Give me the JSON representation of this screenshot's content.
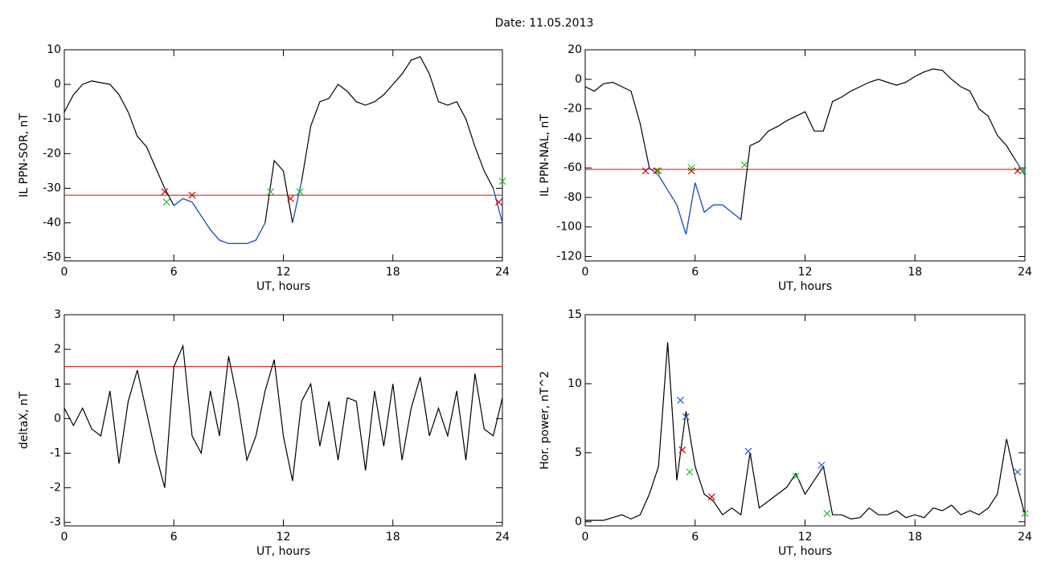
{
  "title": "Date:  11.05.2013",
  "chart_data": [
    {
      "type": "line",
      "ylabel": "IL PPN-SOR, nT",
      "xlabel": "UT, hours",
      "xlim": [
        0,
        24
      ],
      "xticks": [
        0,
        6,
        12,
        18,
        24
      ],
      "ylim": [
        -51,
        10
      ],
      "yticks": [
        -50,
        -40,
        -30,
        -20,
        -10,
        0,
        10
      ],
      "x": [
        0,
        0.5,
        1,
        1.5,
        2,
        2.5,
        3,
        3.5,
        4,
        4.5,
        5,
        5.5,
        6,
        6.5,
        7,
        7.5,
        8,
        8.5,
        9,
        9.5,
        10,
        10.5,
        11,
        11.5,
        12,
        12.5,
        13,
        13.5,
        14,
        14.5,
        15,
        15.5,
        16,
        16.5,
        17,
        17.5,
        18,
        18.5,
        19,
        19.5,
        20,
        20.5,
        21,
        21.5,
        22,
        22.5,
        23,
        23.5,
        24
      ],
      "series": [
        {
          "color": "#000000",
          "values": [
            -8,
            -3,
            0,
            1,
            0.5,
            0,
            -3,
            -8,
            -15,
            -18,
            -24,
            -30,
            -35,
            -33,
            -34,
            -38,
            -42,
            -45,
            -46,
            -46,
            -46,
            -45,
            -40,
            -22,
            -25,
            -40,
            -28,
            -12,
            -5,
            -4,
            0,
            -2,
            -5,
            -6,
            -5,
            -3,
            0,
            3,
            7,
            8,
            3,
            -5,
            -6,
            -5,
            -10,
            -18,
            -25,
            -30,
            -40
          ]
        },
        {
          "color": "#1f5fd0",
          "values": [
            null,
            null,
            null,
            null,
            null,
            null,
            null,
            null,
            null,
            null,
            null,
            null,
            -35,
            -33,
            -34,
            -38,
            -42,
            -45,
            -46,
            -46,
            -46,
            -45,
            -40,
            null,
            null,
            -40,
            -28,
            null,
            null,
            null,
            null,
            null,
            null,
            null,
            null,
            null,
            null,
            null,
            null,
            null,
            null,
            null,
            null,
            null,
            null,
            null,
            null,
            -30,
            -40
          ]
        }
      ],
      "threshold": {
        "value": -32,
        "color": "#e00000"
      },
      "markers": [
        {
          "color": "#e00000",
          "x": [
            5.5,
            7,
            12.4,
            23.8
          ],
          "y": [
            -31,
            -32,
            -33,
            -34
          ]
        },
        {
          "color": "#20c020",
          "x": [
            5.6,
            11.3,
            12.9,
            24
          ],
          "y": [
            -34,
            -31,
            -31,
            -28
          ]
        }
      ]
    },
    {
      "type": "line",
      "ylabel": "IL PPN-NAL, nT",
      "xlabel": "UT, hours",
      "xlim": [
        0,
        24
      ],
      "xticks": [
        0,
        6,
        12,
        18,
        24
      ],
      "ylim": [
        -123,
        20
      ],
      "yticks": [
        -120,
        -100,
        -80,
        -60,
        -40,
        -20,
        0,
        20
      ],
      "x": [
        0,
        0.5,
        1,
        1.5,
        2,
        2.5,
        3,
        3.5,
        4,
        4.5,
        5,
        5.5,
        6,
        6.5,
        7,
        7.5,
        8,
        8.5,
        9,
        9.5,
        10,
        10.5,
        11,
        11.5,
        12,
        12.5,
        13,
        13.5,
        14,
        14.5,
        15,
        15.5,
        16,
        16.5,
        17,
        17.5,
        18,
        18.5,
        19,
        19.5,
        20,
        20.5,
        21,
        21.5,
        22,
        22.5,
        23,
        23.5,
        24
      ],
      "series": [
        {
          "color": "#000000",
          "values": [
            -5,
            -8,
            -3,
            -2,
            -5,
            -8,
            -30,
            -60,
            -65,
            -75,
            -85,
            -105,
            -70,
            -90,
            -85,
            -85,
            -90,
            -95,
            -45,
            -42,
            -35,
            -32,
            -28,
            -25,
            -22,
            -35,
            -35,
            -15,
            -12,
            -8,
            -5,
            -2,
            0,
            -2,
            -4,
            -2,
            2,
            5,
            7,
            6,
            0,
            -5,
            -8,
            -20,
            -25,
            -38,
            -45,
            -55,
            -65
          ]
        },
        {
          "color": "#1f5fd0",
          "values": [
            null,
            null,
            null,
            null,
            null,
            null,
            null,
            -60,
            -65,
            -75,
            -85,
            -105,
            -70,
            -90,
            -85,
            -85,
            -90,
            -95,
            null,
            null,
            null,
            null,
            null,
            null,
            null,
            null,
            null,
            null,
            null,
            null,
            null,
            null,
            null,
            null,
            null,
            null,
            null,
            null,
            null,
            null,
            null,
            null,
            null,
            null,
            null,
            null,
            null,
            -55,
            -65
          ]
        }
      ],
      "threshold": {
        "value": -61,
        "color": "#e00000"
      },
      "markers": [
        {
          "color": "#e00000",
          "x": [
            3.3,
            3.9,
            5.8,
            23.6
          ],
          "y": [
            -62,
            -62,
            -62,
            -62
          ]
        },
        {
          "color": "#20c020",
          "x": [
            4.0,
            5.8,
            8.7,
            23.9
          ],
          "y": [
            -62,
            -60,
            -58,
            -62
          ]
        }
      ]
    },
    {
      "type": "line",
      "ylabel": "deltaX, nT",
      "xlabel": "UT, hours",
      "xlim": [
        0,
        24
      ],
      "xticks": [
        0,
        6,
        12,
        18,
        24
      ],
      "ylim": [
        -3.1,
        3
      ],
      "yticks": [
        -3,
        -2,
        -1,
        0,
        1,
        2,
        3
      ],
      "x": [
        0,
        0.5,
        1,
        1.5,
        2,
        2.5,
        3,
        3.5,
        4,
        4.5,
        5,
        5.5,
        6,
        6.5,
        7,
        7.5,
        8,
        8.5,
        9,
        9.5,
        10,
        10.5,
        11,
        11.5,
        12,
        12.5,
        13,
        13.5,
        14,
        14.5,
        15,
        15.5,
        16,
        16.5,
        17,
        17.5,
        18,
        18.5,
        19,
        19.5,
        20,
        20.5,
        21,
        21.5,
        22,
        22.5,
        23,
        23.5,
        24
      ],
      "series": [
        {
          "color": "#000000",
          "values": [
            0.3,
            -0.2,
            0.3,
            -0.3,
            -0.5,
            0.8,
            -1.3,
            0.5,
            1.4,
            0.2,
            -1.0,
            -2.0,
            1.5,
            2.1,
            -0.5,
            -1.0,
            0.8,
            -0.5,
            1.8,
            0.5,
            -1.2,
            -0.5,
            0.8,
            1.7,
            -0.5,
            -1.8,
            0.5,
            1.0,
            -0.8,
            0.5,
            -1.2,
            0.6,
            0.5,
            -1.5,
            0.8,
            -0.8,
            1.0,
            -1.2,
            0.3,
            1.2,
            -0.5,
            0.3,
            -0.5,
            0.8,
            -1.2,
            1.3,
            -0.3,
            -0.5,
            0.6
          ]
        }
      ],
      "threshold": {
        "value": 1.5,
        "color": "#e00000"
      },
      "markers": []
    },
    {
      "type": "line",
      "ylabel": "Hor. power, nT^2",
      "xlabel": "UT, hours",
      "xlim": [
        0,
        24
      ],
      "xticks": [
        0,
        6,
        12,
        18,
        24
      ],
      "ylim": [
        -0.3,
        15
      ],
      "yticks": [
        0,
        5,
        10,
        15
      ],
      "x": [
        0,
        0.5,
        1,
        1.5,
        2,
        2.5,
        3,
        3.5,
        4,
        4.5,
        5,
        5.5,
        6,
        6.5,
        7,
        7.5,
        8,
        8.5,
        9,
        9.5,
        10,
        10.5,
        11,
        11.5,
        12,
        12.5,
        13,
        13.5,
        14,
        14.5,
        15,
        15.5,
        16,
        16.5,
        17,
        17.5,
        18,
        18.5,
        19,
        19.5,
        20,
        20.5,
        21,
        21.5,
        22,
        22.5,
        23,
        23.5,
        24
      ],
      "series": [
        {
          "color": "#000000",
          "values": [
            0.1,
            0.1,
            0.1,
            0.3,
            0.5,
            0.2,
            0.5,
            2,
            4,
            13,
            3,
            8,
            4,
            2,
            1.5,
            0.5,
            1,
            0.5,
            5,
            1,
            1.5,
            2,
            2.5,
            3.5,
            2,
            3,
            4,
            0.5,
            0.5,
            0.2,
            0.3,
            1,
            0.5,
            0.5,
            0.8,
            0.3,
            0.5,
            0.3,
            1,
            0.8,
            1.2,
            0.5,
            0.8,
            0.5,
            1,
            2,
            6,
            3,
            0.5
          ]
        }
      ],
      "markers": [
        {
          "color": "#1f5fd0",
          "x": [
            5.2,
            5.5,
            8.9,
            12.9,
            23.6
          ],
          "y": [
            8.8,
            7.6,
            5.1,
            4.1,
            3.6
          ]
        },
        {
          "color": "#e00000",
          "x": [
            5.3,
            6.9
          ],
          "y": [
            5.2,
            1.8
          ]
        },
        {
          "color": "#20c020",
          "x": [
            5.7,
            11.5,
            13.2,
            24
          ],
          "y": [
            3.6,
            3.3,
            0.6,
            0.6
          ]
        }
      ]
    }
  ]
}
